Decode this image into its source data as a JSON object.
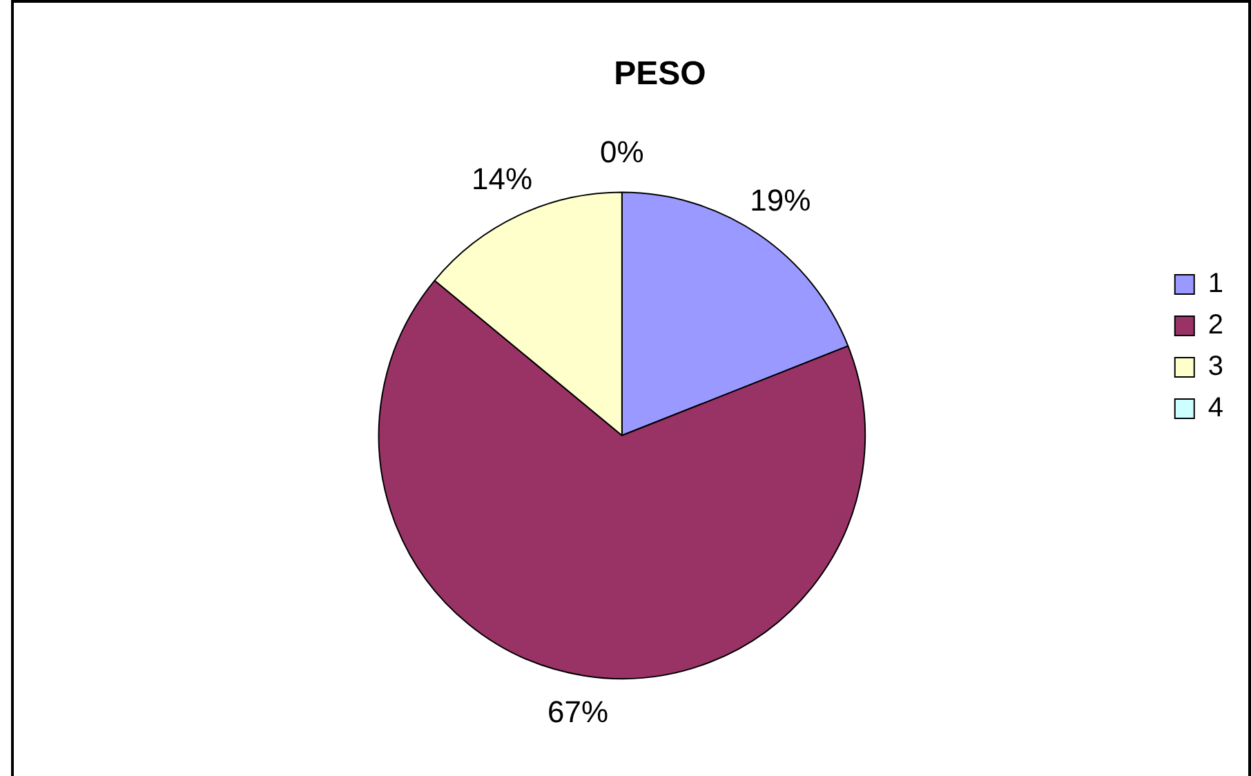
{
  "chart_data": {
    "type": "pie",
    "title": "PESO",
    "categories": [
      "1",
      "2",
      "3",
      "4"
    ],
    "values": [
      19,
      67,
      14,
      0
    ],
    "value_labels": [
      "19%",
      "67%",
      "14%",
      "0%"
    ],
    "colors": [
      "#9999ff",
      "#993366",
      "#ffffcc",
      "#ccffff"
    ],
    "legend": "right"
  }
}
